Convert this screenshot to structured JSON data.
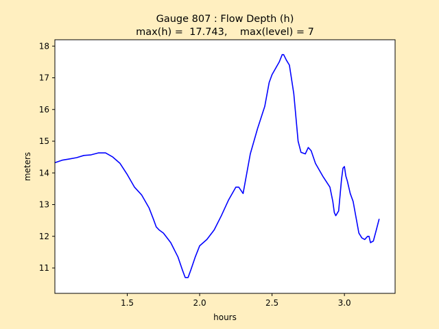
{
  "chart_data": {
    "type": "line",
    "title": "Gauge 807 : Flow Depth (h)",
    "subtitle": "max(h) =  17.743,    max(level) = 7",
    "xlabel": "hours",
    "ylabel": "meters",
    "xlim": [
      1.0,
      3.35
    ],
    "ylim": [
      10.2,
      18.2
    ],
    "xticks": [
      1.5,
      2.0,
      2.5,
      3.0
    ],
    "xtick_labels": [
      "1.5",
      "2.0",
      "2.5",
      "3.0"
    ],
    "yticks": [
      11,
      12,
      13,
      14,
      15,
      16,
      17,
      18
    ],
    "ytick_labels": [
      "11",
      "12",
      "13",
      "14",
      "15",
      "16",
      "17",
      "18"
    ],
    "grid": false,
    "colors": {
      "line": "#0000ff",
      "figure_bg": "#ffefc0",
      "axes_bg": "#ffffff"
    },
    "series": [
      {
        "x": [
          1.0,
          1.05,
          1.1,
          1.15,
          1.2,
          1.25,
          1.3,
          1.35,
          1.4,
          1.45,
          1.5,
          1.55,
          1.6,
          1.65,
          1.68,
          1.7,
          1.72,
          1.75,
          1.8,
          1.85,
          1.88,
          1.9,
          1.92,
          1.94,
          1.97,
          2.0,
          2.05,
          2.1,
          2.15,
          2.2,
          2.25,
          2.27,
          2.3,
          2.35,
          2.4,
          2.45,
          2.48,
          2.5,
          2.55,
          2.57,
          2.58,
          2.6,
          2.62,
          2.65,
          2.68,
          2.7,
          2.73,
          2.75,
          2.77,
          2.8,
          2.85,
          2.9,
          2.92,
          2.93,
          2.94,
          2.96,
          2.98,
          2.99,
          3.0,
          3.01,
          3.02,
          3.04,
          3.06,
          3.08,
          3.1,
          3.12,
          3.14,
          3.16,
          3.17,
          3.18,
          3.2,
          3.22,
          3.24
        ],
        "y": [
          14.32,
          14.4,
          14.44,
          14.48,
          14.55,
          14.57,
          14.63,
          14.63,
          14.5,
          14.3,
          13.95,
          13.55,
          13.3,
          12.9,
          12.55,
          12.3,
          12.2,
          12.1,
          11.8,
          11.35,
          10.95,
          10.7,
          10.7,
          10.95,
          11.35,
          11.7,
          11.9,
          12.2,
          12.65,
          13.15,
          13.55,
          13.55,
          13.35,
          14.6,
          15.4,
          16.1,
          16.85,
          17.1,
          17.5,
          17.73,
          17.73,
          17.55,
          17.4,
          16.5,
          15.0,
          14.65,
          14.6,
          14.8,
          14.7,
          14.3,
          13.9,
          13.55,
          13.1,
          12.75,
          12.65,
          12.8,
          13.8,
          14.15,
          14.2,
          13.9,
          13.75,
          13.35,
          13.1,
          12.6,
          12.1,
          11.95,
          11.9,
          12.0,
          12.0,
          11.8,
          11.85,
          12.2,
          12.55
        ]
      }
    ]
  }
}
